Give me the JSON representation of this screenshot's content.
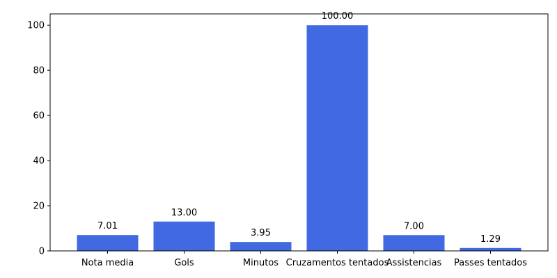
{
  "chart_data": {
    "type": "bar",
    "categories": [
      "Nota media",
      "Gols",
      "Minutos",
      "Cruzamentos tentados",
      "Assistencias",
      "Passes tentados"
    ],
    "values": [
      7.01,
      13.0,
      3.95,
      100.0,
      7.0,
      1.29
    ],
    "value_labels": [
      "7.01",
      "13.00",
      "3.95",
      "100.00",
      "7.00",
      "1.29"
    ],
    "title": "",
    "xlabel": "",
    "ylabel": "",
    "ylim": [
      0,
      105
    ],
    "yticks": [
      0,
      20,
      40,
      60,
      80,
      100
    ],
    "bar_color": "#4169E1",
    "grid": false,
    "legend": "none"
  }
}
